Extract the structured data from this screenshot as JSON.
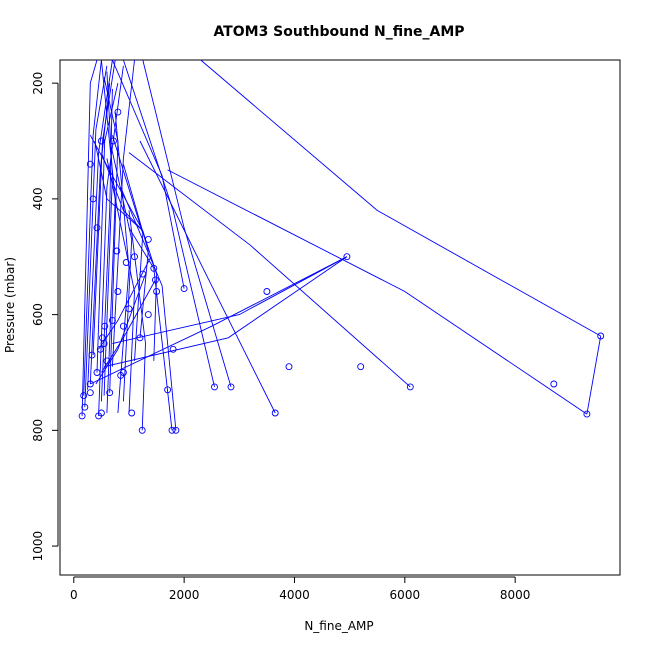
{
  "chart_data": {
    "type": "line",
    "title": "ATOM3 Southbound N_fine_AMP",
    "xlabel": "N_fine_AMP",
    "ylabel": "Pressure (mbar)",
    "xlim": [
      -250,
      9900
    ],
    "ylim": [
      1050,
      160
    ],
    "y_reversed": true,
    "grid": false,
    "x_ticks": [
      0,
      2000,
      4000,
      6000,
      8000
    ],
    "y_ticks": [
      200,
      400,
      600,
      800,
      1000
    ],
    "series": [
      {
        "color": "#0000ff",
        "marker": "open-circle",
        "x": [
          150,
          300,
          420,
          480,
          520,
          560,
          1000,
          1480,
          720,
          200,
          180,
          450,
          650,
          900,
          1200,
          1450,
          2000,
          2550,
          2850,
          3650,
          3900,
          4950,
          3500,
          300,
          550,
          700,
          800,
          1100,
          1350,
          6100,
          5200,
          1700,
          1780,
          1850,
          9550,
          9300,
          8700,
          1800,
          1240,
          1050,
          850,
          600,
          500,
          330,
          900,
          1350,
          1500,
          1250,
          950,
          780,
          420,
          350,
          300,
          500,
          800
        ],
        "y": [
          775,
          735,
          700,
          660,
          640,
          620,
          590,
          540,
          300,
          760,
          740,
          775,
          735,
          700,
          640,
          520,
          555,
          725,
          725,
          770,
          690,
          500,
          560,
          720,
          650,
          610,
          560,
          500,
          470,
          725,
          690,
          730,
          800,
          800,
          637,
          772,
          720,
          660,
          800,
          770,
          705,
          680,
          770,
          670,
          620,
          600,
          560,
          530,
          510,
          490,
          450,
          400,
          340,
          300,
          250
        ],
        "paths": [
          [
            [
              150,
              775
            ],
            [
              300,
              200
            ],
            [
              420,
              160
            ]
          ],
          [
            [
              180,
              740
            ],
            [
              350,
              290
            ],
            [
              500,
              160
            ]
          ],
          [
            [
              200,
              760
            ],
            [
              400,
              280
            ],
            [
              600,
              170
            ]
          ],
          [
            [
              250,
              730
            ],
            [
              450,
              320
            ],
            [
              700,
              160
            ]
          ],
          [
            [
              300,
              720
            ],
            [
              480,
              350
            ],
            [
              650,
              200
            ]
          ],
          [
            [
              350,
              670
            ],
            [
              520,
              300
            ],
            [
              750,
              160
            ]
          ],
          [
            [
              420,
              700
            ],
            [
              560,
              300
            ],
            [
              800,
              200
            ]
          ],
          [
            [
              450,
              775
            ],
            [
              600,
              380
            ],
            [
              900,
              170
            ]
          ],
          [
            [
              500,
              750
            ],
            [
              650,
              420
            ],
            [
              700,
              210
            ]
          ],
          [
            [
              550,
              740
            ],
            [
              700,
              360
            ],
            [
              600,
              180
            ]
          ],
          [
            [
              600,
              770
            ],
            [
              750,
              400
            ],
            [
              500,
              160
            ]
          ],
          [
            [
              650,
              735
            ],
            [
              800,
              300
            ],
            [
              550,
              190
            ]
          ],
          [
            [
              700,
              690
            ],
            [
              900,
              330
            ],
            [
              1100,
              160
            ]
          ],
          [
            [
              800,
              770
            ],
            [
              1000,
              520
            ],
            [
              750,
              250
            ]
          ],
          [
            [
              900,
              750
            ],
            [
              1050,
              470
            ],
            [
              680,
              310
            ]
          ],
          [
            [
              1000,
              770
            ],
            [
              1100,
              560
            ],
            [
              600,
              330
            ]
          ],
          [
            [
              1100,
              680
            ],
            [
              1250,
              460
            ],
            [
              700,
              290
            ]
          ],
          [
            [
              1200,
              640
            ],
            [
              1350,
              490
            ],
            [
              900,
              340
            ]
          ],
          [
            [
              1240,
              800
            ],
            [
              1300,
              650
            ],
            [
              1000,
              420
            ]
          ],
          [
            [
              1450,
              680
            ],
            [
              1500,
              530
            ],
            [
              1250,
              455
            ]
          ],
          [
            [
              1780,
              800
            ],
            [
              1450,
              520
            ],
            [
              1000,
              450
            ]
          ],
          [
            [
              1850,
              800
            ],
            [
              1600,
              550
            ],
            [
              850,
              380
            ]
          ],
          [
            [
              2000,
              555
            ],
            [
              1600,
              360
            ],
            [
              700,
              160
            ]
          ],
          [
            [
              2550,
              725
            ],
            [
              1800,
              420
            ],
            [
              900,
              160
            ]
          ],
          [
            [
              2850,
              725
            ],
            [
              2000,
              450
            ],
            [
              1250,
              160
            ]
          ],
          [
            [
              3650,
              770
            ],
            [
              2500,
              550
            ],
            [
              1200,
              300
            ]
          ],
          [
            [
              6100,
              725
            ],
            [
              3200,
              480
            ],
            [
              1000,
              320
            ]
          ],
          [
            [
              9550,
              637
            ],
            [
              5500,
              420
            ],
            [
              2300,
              160
            ]
          ],
          [
            [
              9300,
              772
            ],
            [
              9550,
              637
            ]
          ],
          [
            [
              9300,
              772
            ],
            [
              6000,
              560
            ],
            [
              1700,
              350
            ]
          ],
          [
            [
              4950,
              500
            ],
            [
              2500,
              620
            ],
            [
              300,
              720
            ]
          ],
          [
            [
              4950,
              500
            ],
            [
              2800,
              640
            ],
            [
              550,
              690
            ]
          ],
          [
            [
              4950,
              500
            ],
            [
              3000,
              600
            ],
            [
              700,
              650
            ]
          ],
          [
            [
              1300,
              530
            ],
            [
              800,
              660
            ],
            [
              400,
              720
            ]
          ],
          [
            [
              1480,
              540
            ],
            [
              900,
              640
            ],
            [
              500,
              700
            ]
          ],
          [
            [
              1400,
              500
            ],
            [
              800,
              610
            ],
            [
              450,
              660
            ]
          ],
          [
            [
              1250,
              455
            ],
            [
              700,
              360
            ],
            [
              300,
              290
            ]
          ],
          [
            [
              1250,
              455
            ],
            [
              600,
              400
            ],
            [
              380,
              300
            ]
          ],
          [
            [
              1250,
              455
            ],
            [
              900,
              420
            ],
            [
              500,
              320
            ]
          ]
        ]
      }
    ]
  }
}
